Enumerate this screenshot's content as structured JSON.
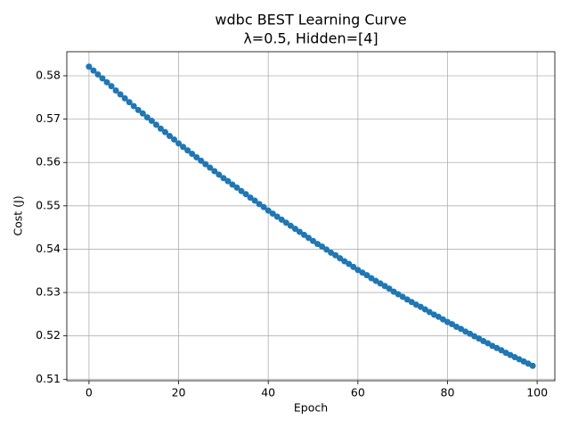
{
  "chart_data": {
    "type": "line",
    "title": [
      "wdbc BEST Learning Curve",
      "λ=0.5, Hidden=[4]"
    ],
    "x_label": "Epoch",
    "y_label": "Cost (J)",
    "x": [
      0,
      1,
      2,
      3,
      4,
      5,
      6,
      7,
      8,
      9,
      10,
      11,
      12,
      13,
      14,
      15,
      16,
      17,
      18,
      19,
      20,
      21,
      22,
      23,
      24,
      25,
      26,
      27,
      28,
      29,
      30,
      31,
      32,
      33,
      34,
      35,
      36,
      37,
      38,
      39,
      40,
      41,
      42,
      43,
      44,
      45,
      46,
      47,
      48,
      49,
      50,
      51,
      52,
      53,
      54,
      55,
      56,
      57,
      58,
      59,
      60,
      61,
      62,
      63,
      64,
      65,
      66,
      67,
      68,
      69,
      70,
      71,
      72,
      73,
      74,
      75,
      76,
      77,
      78,
      79,
      80,
      81,
      82,
      83,
      84,
      85,
      86,
      87,
      88,
      89,
      90,
      91,
      92,
      93,
      94,
      95,
      96,
      97,
      98,
      99
    ],
    "values": [
      0.5821,
      0.5812,
      0.5803,
      0.5794,
      0.5785,
      0.5776,
      0.5766,
      0.5757,
      0.5748,
      0.5739,
      0.573,
      0.5721,
      0.5713,
      0.5704,
      0.5696,
      0.5687,
      0.5678,
      0.567,
      0.5661,
      0.5653,
      0.5644,
      0.5636,
      0.5628,
      0.562,
      0.5612,
      0.5604,
      0.5596,
      0.5588,
      0.558,
      0.5572,
      0.5564,
      0.5557,
      0.5549,
      0.5542,
      0.5534,
      0.5527,
      0.5519,
      0.5512,
      0.5504,
      0.5497,
      0.5489,
      0.5482,
      0.5475,
      0.5468,
      0.5461,
      0.5454,
      0.5447,
      0.544,
      0.5433,
      0.5426,
      0.5419,
      0.5412,
      0.5406,
      0.5399,
      0.5392,
      0.5386,
      0.5379,
      0.5372,
      0.5366,
      0.5359,
      0.5352,
      0.5346,
      0.534,
      0.5333,
      0.5327,
      0.5321,
      0.5315,
      0.5309,
      0.5302,
      0.5296,
      0.529,
      0.5284,
      0.5278,
      0.5272,
      0.5267,
      0.5261,
      0.5255,
      0.5249,
      0.5244,
      0.5238,
      0.5232,
      0.5227,
      0.5221,
      0.5216,
      0.521,
      0.5205,
      0.5199,
      0.5194,
      0.5188,
      0.5183,
      0.5177,
      0.5172,
      0.5167,
      0.5161,
      0.5156,
      0.5151,
      0.5146,
      0.5141,
      0.5136,
      0.5131
    ],
    "color": "#1f77b4",
    "xlim": [
      -4.95,
      103.95
    ],
    "xticks": [
      0,
      20,
      40,
      60,
      80,
      100
    ],
    "ylim": [
      0.50965,
      0.58555
    ],
    "yticks": [
      0.51,
      0.52,
      0.53,
      0.54,
      0.55,
      0.56,
      0.57,
      0.58
    ],
    "grid": true
  }
}
